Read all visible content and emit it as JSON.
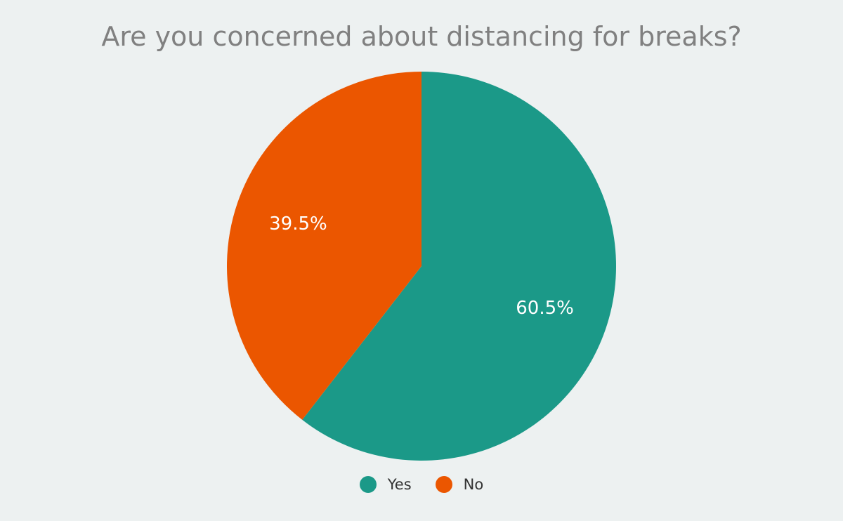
{
  "chart_data": {
    "type": "pie",
    "title": "Are you concerned about distancing for breaks?",
    "categories": [
      "Yes",
      "No"
    ],
    "values": [
      60.5,
      39.5
    ],
    "labels": [
      "60.5%",
      "39.5%"
    ],
    "colors": [
      "#1b9988",
      "#eb5600"
    ],
    "legend_position": "bottom"
  }
}
